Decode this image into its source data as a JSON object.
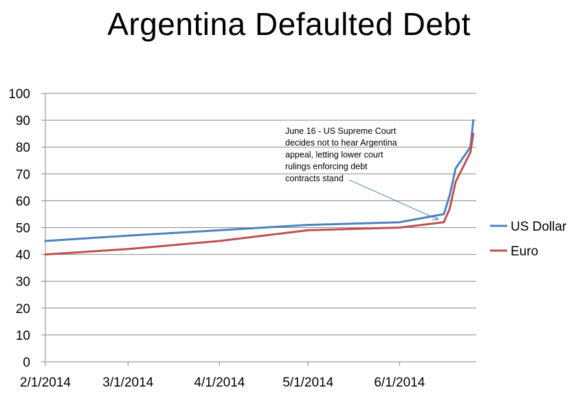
{
  "chart_data": {
    "type": "line",
    "title": "Argentina Defaulted Debt",
    "xlabel": "",
    "ylabel": "",
    "ylim": [
      0,
      100
    ],
    "y_ticks": [
      0,
      10,
      20,
      30,
      40,
      50,
      60,
      70,
      80,
      90,
      100
    ],
    "x_ticks": [
      "2/1/2014",
      "3/1/2014",
      "4/1/2014",
      "5/1/2014",
      "6/1/2014"
    ],
    "x_tick_days": [
      0,
      28,
      59,
      89,
      120
    ],
    "x_range_days": [
      0,
      146
    ],
    "grid": "horizontal",
    "legend_position": "right",
    "series": [
      {
        "name": "US Dollar",
        "color": "#4f81bd",
        "points": [
          {
            "x": "2/1/2014",
            "y": 45
          },
          {
            "x": "3/1/2014",
            "y": 47
          },
          {
            "x": "4/1/2014",
            "y": 49
          },
          {
            "x": "5/1/2014",
            "y": 51
          },
          {
            "x": "6/1/2014",
            "y": 52
          },
          {
            "x": "6/16/2014",
            "y": 55
          },
          {
            "x": "6/18/2014",
            "y": 62
          },
          {
            "x": "6/20/2014",
            "y": 72
          },
          {
            "x": "6/25/2014",
            "y": 80
          },
          {
            "x": "6/26/2014",
            "y": 90
          }
        ]
      },
      {
        "name": "Euro",
        "color": "#c0504d",
        "points": [
          {
            "x": "2/1/2014",
            "y": 40
          },
          {
            "x": "3/1/2014",
            "y": 42
          },
          {
            "x": "4/1/2014",
            "y": 45
          },
          {
            "x": "5/1/2014",
            "y": 49
          },
          {
            "x": "6/1/2014",
            "y": 50
          },
          {
            "x": "6/16/2014",
            "y": 52
          },
          {
            "x": "6/18/2014",
            "y": 57
          },
          {
            "x": "6/20/2014",
            "y": 67
          },
          {
            "x": "6/25/2014",
            "y": 78
          },
          {
            "x": "6/26/2014",
            "y": 85
          }
        ]
      }
    ],
    "annotations": [
      {
        "lines": [
          "June 16 - US Supreme Court",
          "decides not to hear Argentina",
          "appeal, letting lower court",
          "rulings enforcing debt",
          "contracts stand"
        ],
        "points_to": {
          "x": "6/16/2014",
          "y": 55
        }
      }
    ]
  }
}
